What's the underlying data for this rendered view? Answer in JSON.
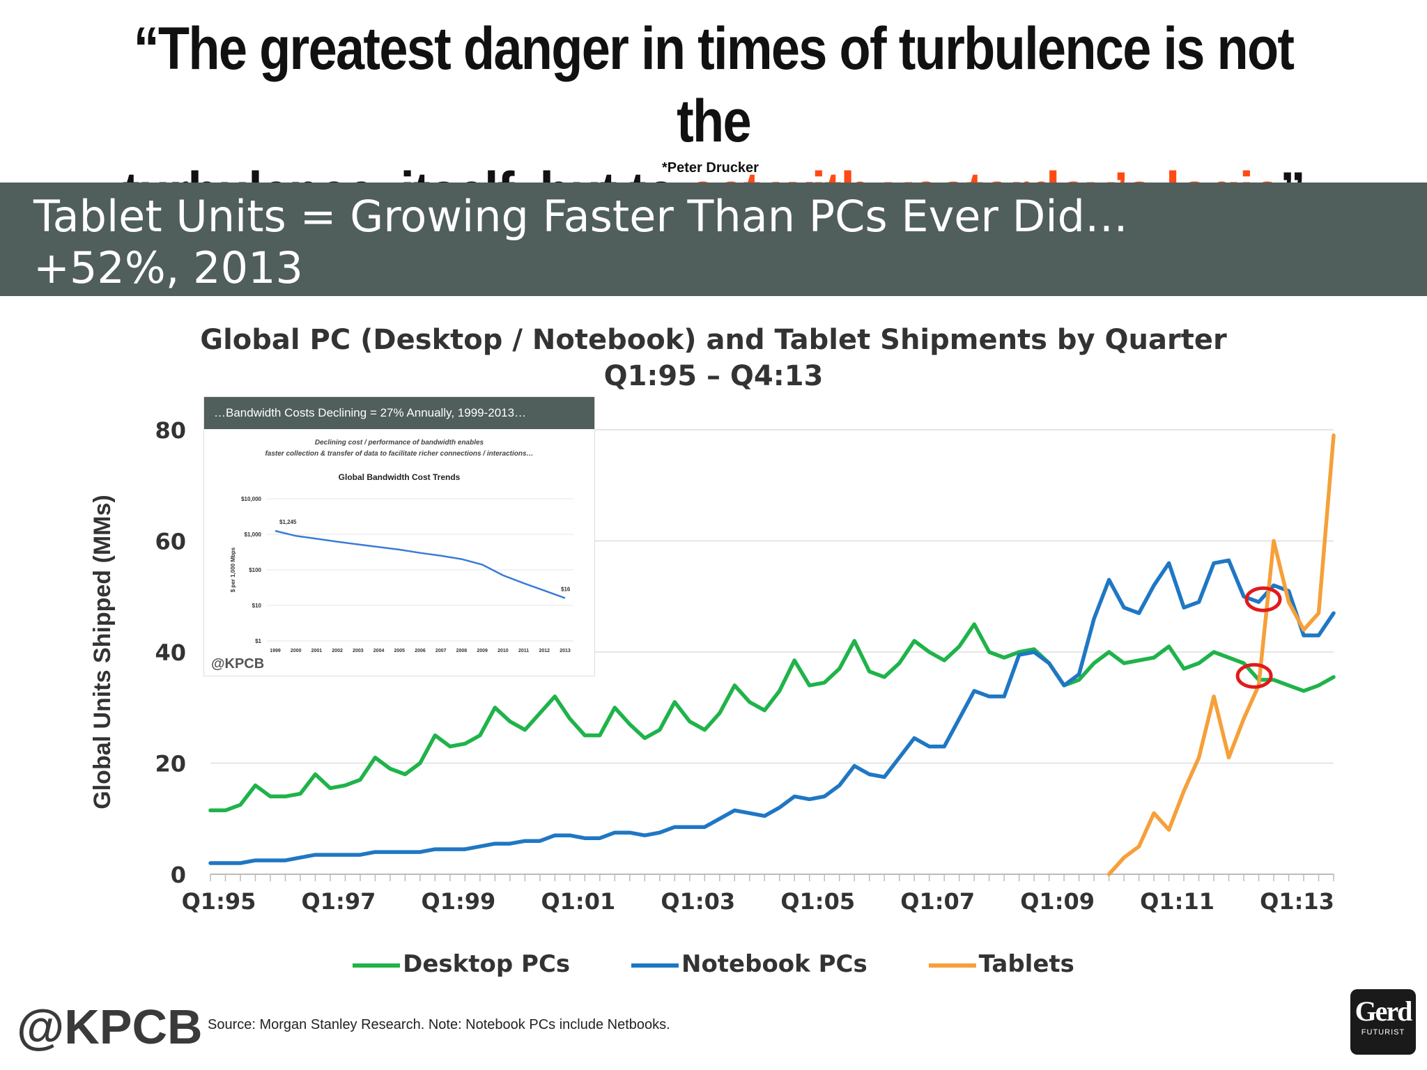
{
  "quote": {
    "line1": "“The greatest danger in times of turbulence is not the",
    "line2_plain": "turbulence, itself, but to ",
    "line2_highlight": "act with yesterday’s logic",
    "line2_close": "”",
    "attribution": "*Peter Drucker",
    "highlight_color": "#ff4a14"
  },
  "banner": {
    "line1": "Tablet Units = Growing Faster Than PCs Ever Did…",
    "line2": "+52%, 2013"
  },
  "inset": {
    "header": "…Bandwidth Costs Declining = 27% Annually, 1999-2013…",
    "sub1": "Declining cost / performance of bandwidth enables",
    "sub2": "faster collection & transfer of data to facilitate richer connections / interactions…",
    "title": "Global Bandwidth Cost Trends",
    "ylabel": "$ per 1,000 Mbps",
    "yticks": [
      "$10,000",
      "$1,000",
      "$100",
      "$10",
      "$1"
    ],
    "start_label": "$1,245",
    "end_label": "$16",
    "years": [
      "1999",
      "2000",
      "2001",
      "2002",
      "2003",
      "2004",
      "2005",
      "2006",
      "2007",
      "2008",
      "2009",
      "2010",
      "2011",
      "2012",
      "2013"
    ],
    "values": [
      1245,
      900,
      750,
      620,
      520,
      440,
      370,
      300,
      250,
      200,
      140,
      70,
      42,
      26,
      16
    ],
    "brand": "@KPCB"
  },
  "chart_data": {
    "type": "line",
    "title": "Global PC (Desktop / Notebook) and Tablet Shipments by Quarter",
    "subtitle": "Q1:95 – Q4:13",
    "ylabel": "Global Units Shipped (MMs)",
    "xlabel": "",
    "ylim": [
      0,
      80
    ],
    "yticks": [
      0,
      20,
      40,
      60,
      80
    ],
    "xtick_labels": [
      "Q1:95",
      "Q1:97",
      "Q1:99",
      "Q1:01",
      "Q1:03",
      "Q1:05",
      "Q1:07",
      "Q1:09",
      "Q1:11",
      "Q1:13"
    ],
    "n_quarters": 76,
    "series": [
      {
        "name": "Desktop PCs",
        "color": "#1fb34a",
        "values": [
          11.5,
          11.5,
          12.5,
          16,
          14,
          14,
          14.5,
          18,
          15.5,
          16,
          17,
          21,
          19,
          18,
          20,
          25,
          23,
          23.5,
          25,
          30,
          27.5,
          26,
          29,
          32,
          28,
          25,
          25,
          30,
          27,
          24.5,
          26,
          31,
          27.5,
          26,
          29,
          34,
          31,
          29.5,
          33,
          38.5,
          34,
          34.5,
          37,
          42,
          36.5,
          35.5,
          38,
          42,
          40,
          38.5,
          41,
          45,
          40,
          39,
          40,
          40.5,
          38,
          34,
          35,
          38,
          40,
          38,
          38.5,
          39,
          41,
          37,
          38,
          40,
          39,
          38,
          35,
          35,
          34,
          33,
          34,
          35.5
        ]
      },
      {
        "name": "Notebook PCs",
        "color": "#1f77c4",
        "values": [
          2,
          2,
          2,
          2.5,
          2.5,
          2.5,
          3,
          3.5,
          3.5,
          3.5,
          3.5,
          4,
          4,
          4,
          4,
          4.5,
          4.5,
          4.5,
          5,
          5.5,
          5.5,
          6,
          6,
          7,
          7,
          6.5,
          6.5,
          7.5,
          7.5,
          7,
          7.5,
          8.5,
          8.5,
          8.5,
          10,
          11.5,
          11,
          10.5,
          12,
          14,
          13.5,
          14,
          16,
          19.5,
          18,
          17.5,
          21,
          24.5,
          23,
          23,
          28,
          33,
          32,
          32,
          39.5,
          40,
          38,
          34,
          36,
          46,
          53,
          48,
          47,
          52,
          56,
          48,
          49,
          56,
          56.5,
          50,
          49,
          52,
          51,
          43,
          43,
          47
        ]
      },
      {
        "name": "Tablets",
        "color": "#f5a03a",
        "start_quarter_index": 60,
        "values": [
          0,
          3,
          5,
          11,
          8,
          15,
          21,
          32,
          21,
          28,
          34,
          60,
          49,
          44,
          47,
          79
        ]
      }
    ],
    "annotations": [
      "red circle at Notebook/Tablet crossover Q3:12",
      "red circle at Desktop/Tablet crossover Q3:12"
    ],
    "legend": [
      "Desktop PCs",
      "Notebook PCs",
      "Tablets"
    ],
    "source": "Source: Morgan Stanley Research. Note: Notebook PCs include Netbooks."
  },
  "footer": {
    "brand": "@KPCB",
    "source": "Source: Morgan Stanley Research. Note: Notebook PCs include Netbooks.",
    "logo_word": "Gerd",
    "logo_sub": "FUTURIST"
  }
}
